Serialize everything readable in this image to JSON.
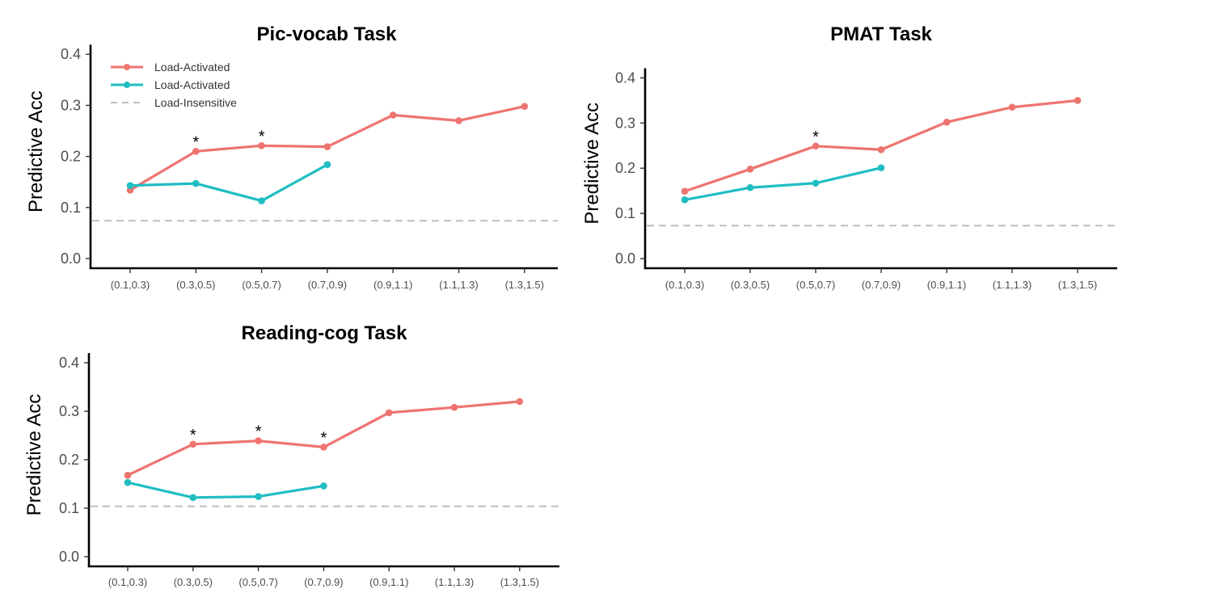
{
  "colors": {
    "series_a": "#EE7470",
    "series_b": "#20BDC2",
    "baseline": "#BEBEBE"
  },
  "chart_data": [
    {
      "type": "line",
      "title": "Pic-vocab Task",
      "ylabel": "Predictive Acc",
      "xlabel": "",
      "ylim": [
        0,
        0.4
      ],
      "yticks": [
        "0.0",
        "0.1",
        "0.2",
        "0.3",
        "0.4"
      ],
      "categories": [
        "(0.1,0.3)",
        "(0.3,0.5)",
        "(0.5,0.7)",
        "(0.7,0.9)",
        "(0.9,1.1)",
        "(1.1,1.3)",
        "(1.3,1.5)"
      ],
      "series": [
        {
          "name": "Load-Activated",
          "color": "series_a",
          "values": [
            0.134,
            0.21,
            0.221,
            0.219,
            0.281,
            0.27,
            0.298
          ]
        },
        {
          "name": "Load-Activated",
          "color": "series_b",
          "values": [
            0.143,
            0.147,
            0.113,
            0.184,
            null,
            null,
            null
          ]
        }
      ],
      "baseline": {
        "name": "Load-Insensitive",
        "value": 0.074
      },
      "significance": [
        {
          "category": "(0.3,0.5)",
          "label": "*"
        },
        {
          "category": "(0.5,0.7)",
          "label": "*"
        }
      ],
      "legend": "top-left",
      "grid": false
    },
    {
      "type": "line",
      "title": "PMAT Task",
      "ylabel": "Predictive Acc",
      "xlabel": "",
      "ylim": [
        0,
        0.4
      ],
      "yticks": [
        "0.0",
        "0.1",
        "0.2",
        "0.3",
        "0.4"
      ],
      "categories": [
        "(0.1,0.3)",
        "(0.3,0.5)",
        "(0.5,0.7)",
        "(0.7,0.9)",
        "(0.9,1.1)",
        "(1.1,1.3)",
        "(1.3,1.5)"
      ],
      "series": [
        {
          "name": "",
          "color": "series_a",
          "values": [
            0.149,
            0.198,
            0.249,
            0.241,
            0.302,
            0.335,
            0.35
          ]
        },
        {
          "name": "",
          "color": "series_b",
          "values": [
            0.13,
            0.157,
            0.167,
            0.201,
            null,
            null,
            null
          ]
        }
      ],
      "baseline": {
        "name": "",
        "value": 0.073
      },
      "significance": [
        {
          "category": "(0.5,0.7)",
          "label": "*"
        }
      ],
      "legend": "none",
      "grid": false
    },
    {
      "type": "line",
      "title": "Reading-cog Task",
      "ylabel": "Predictive Acc",
      "xlabel": "",
      "ylim": [
        0,
        0.4
      ],
      "yticks": [
        "0.0",
        "0.1",
        "0.2",
        "0.3",
        "0.4"
      ],
      "categories": [
        "(0.1,0.3)",
        "(0.3,0.5)",
        "(0.5,0.7)",
        "(0.7,0.9)",
        "(0.9,1.1)",
        "(1.1,1.3)",
        "(1.3,1.5)"
      ],
      "series": [
        {
          "name": "",
          "color": "series_a",
          "values": [
            0.168,
            0.232,
            0.239,
            0.226,
            0.297,
            0.308,
            0.32
          ]
        },
        {
          "name": "",
          "color": "series_b",
          "values": [
            0.153,
            0.122,
            0.124,
            0.146,
            null,
            null,
            null
          ]
        }
      ],
      "baseline": {
        "name": "",
        "value": 0.104
      },
      "significance": [
        {
          "category": "(0.3,0.5)",
          "label": "*"
        },
        {
          "category": "(0.5,0.7)",
          "label": "*"
        },
        {
          "category": "(0.7,0.9)",
          "label": "*"
        }
      ],
      "legend": "none",
      "grid": false
    }
  ]
}
